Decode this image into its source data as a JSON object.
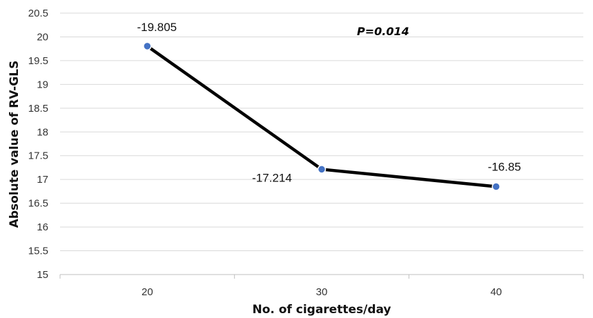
{
  "chart_data": {
    "type": "line",
    "title": "",
    "xlabel": "No. of cigarettes/day",
    "ylabel": "Absolute value of RV-GLS",
    "categories": [
      "20",
      "30",
      "40"
    ],
    "series": [
      {
        "values": [
          19.805,
          17.214,
          16.85
        ],
        "data_labels": [
          "-19.805",
          "-17.214",
          "-16.85"
        ]
      }
    ],
    "ylim": [
      15,
      20.5
    ],
    "yticks": [
      "15",
      "15.5",
      "16",
      "16.5",
      "17",
      "17.5",
      "18",
      "18.5",
      "19",
      "19.5",
      "20",
      "20.5"
    ],
    "annotation": "P=0.014",
    "grid": true,
    "legend": "none",
    "colors": {
      "line": "#000000",
      "marker_fill": "#4472c4",
      "marker_stroke": "#ffffff",
      "grid": "#d9d9d9",
      "axis": "#bfbfbf"
    }
  }
}
